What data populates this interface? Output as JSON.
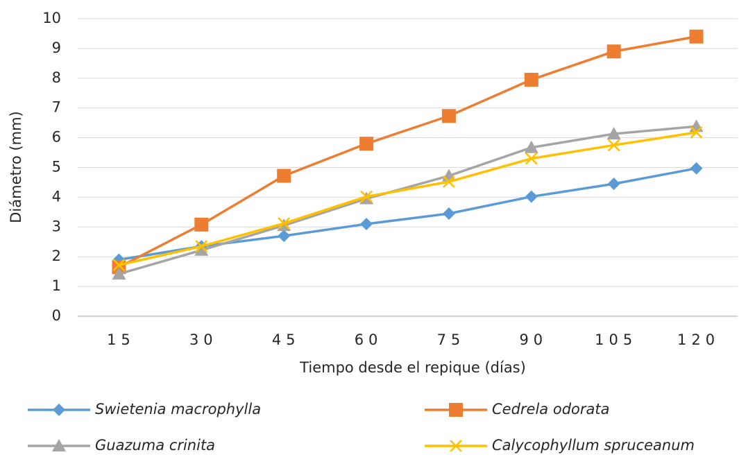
{
  "chart_data": {
    "type": "line",
    "x_label": "Tiempo desde el repique (días)",
    "y_label": "Diámetro (mm)",
    "categories": [
      "15",
      "30",
      "45",
      "60",
      "75",
      "90",
      "105",
      "120"
    ],
    "series": [
      {
        "name": "Swietenia macrophylla",
        "color": "#5b9bd5",
        "marker": "diamond",
        "values": [
          1.9,
          2.35,
          2.7,
          3.1,
          3.45,
          4.02,
          4.45,
          4.97
        ]
      },
      {
        "name": "Cedrela odorata",
        "color": "#ed7d31",
        "marker": "square",
        "values": [
          1.65,
          3.08,
          4.72,
          5.8,
          6.73,
          7.95,
          8.9,
          9.4
        ]
      },
      {
        "name": "Guazuma crinita",
        "color": "#a5a5a5",
        "marker": "triangle",
        "values": [
          1.42,
          2.22,
          3.05,
          3.95,
          4.72,
          5.67,
          6.13,
          6.38
        ]
      },
      {
        "name": "Calycophyllum spruceanum",
        "color": "#ffc000",
        "marker": "x",
        "values": [
          1.72,
          2.35,
          3.12,
          4.02,
          4.52,
          5.3,
          5.75,
          6.18
        ]
      }
    ],
    "ylim": [
      0,
      10
    ],
    "yticks": [
      0,
      1,
      2,
      3,
      4,
      5,
      6,
      7,
      8,
      9,
      10
    ],
    "grid": true,
    "legend": "bottom"
  }
}
